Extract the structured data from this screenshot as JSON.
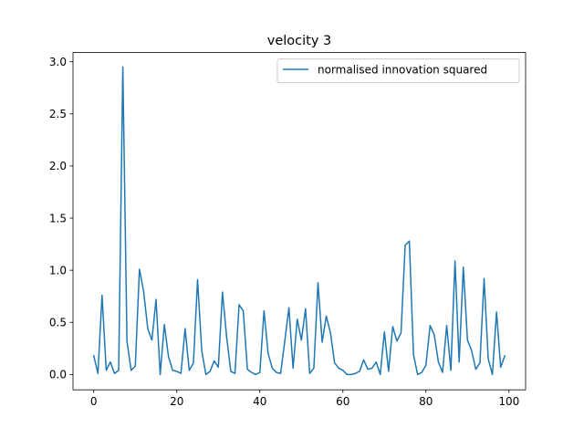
{
  "chart_data": {
    "type": "line",
    "title": "velocity 3",
    "xlabel": "",
    "ylabel": "",
    "xlim": [
      -5,
      104
    ],
    "ylim": [
      -0.147,
      3.088
    ],
    "xticks": [
      0,
      20,
      40,
      60,
      80,
      100
    ],
    "yticks": [
      0.0,
      0.5,
      1.0,
      1.5,
      2.0,
      2.5,
      3.0
    ],
    "xtick_labels": [
      "0",
      "20",
      "40",
      "60",
      "80",
      "100"
    ],
    "ytick_labels": [
      "0.0",
      "0.5",
      "1.0",
      "1.5",
      "2.0",
      "2.5",
      "3.0"
    ],
    "grid": false,
    "legend_position": "upper right",
    "series": [
      {
        "name": "normalised innovation squared",
        "color": "#1f77b4",
        "x": [
          0,
          1,
          2,
          3,
          4,
          5,
          6,
          7,
          8,
          9,
          10,
          11,
          12,
          13,
          14,
          15,
          16,
          17,
          18,
          19,
          20,
          21,
          22,
          23,
          24,
          25,
          26,
          27,
          28,
          29,
          30,
          31,
          32,
          33,
          34,
          35,
          36,
          37,
          38,
          39,
          40,
          41,
          42,
          43,
          44,
          45,
          46,
          47,
          48,
          49,
          50,
          51,
          52,
          53,
          54,
          55,
          56,
          57,
          58,
          59,
          60,
          61,
          62,
          63,
          64,
          65,
          66,
          67,
          68,
          69,
          70,
          71,
          72,
          73,
          74,
          75,
          76,
          77,
          78,
          79,
          80,
          81,
          82,
          83,
          84,
          85,
          86,
          87,
          88,
          89,
          90,
          91,
          92,
          93,
          94,
          95,
          96,
          97,
          98,
          99
        ],
        "y": [
          0.18,
          0.01,
          0.76,
          0.04,
          0.12,
          0.01,
          0.04,
          2.95,
          0.32,
          0.04,
          0.08,
          1.01,
          0.8,
          0.44,
          0.33,
          0.72,
          0.0,
          0.48,
          0.17,
          0.04,
          0.03,
          0.01,
          0.44,
          0.04,
          0.11,
          0.91,
          0.23,
          0.0,
          0.03,
          0.13,
          0.07,
          0.79,
          0.36,
          0.03,
          0.01,
          0.67,
          0.61,
          0.05,
          0.02,
          0.0,
          0.02,
          0.61,
          0.2,
          0.06,
          0.02,
          0.01,
          0.32,
          0.64,
          0.06,
          0.53,
          0.33,
          0.63,
          0.01,
          0.06,
          0.88,
          0.31,
          0.56,
          0.4,
          0.11,
          0.06,
          0.04,
          0.0,
          0.0,
          0.01,
          0.03,
          0.14,
          0.05,
          0.06,
          0.12,
          0.0,
          0.41,
          0.03,
          0.46,
          0.32,
          0.4,
          1.24,
          1.28,
          0.19,
          0.0,
          0.02,
          0.09,
          0.47,
          0.38,
          0.12,
          0.02,
          0.47,
          0.04,
          1.09,
          0.12,
          1.03,
          0.33,
          0.23,
          0.05,
          0.11,
          0.92,
          0.15,
          0.0,
          0.6,
          0.07,
          0.18
        ]
      }
    ]
  }
}
